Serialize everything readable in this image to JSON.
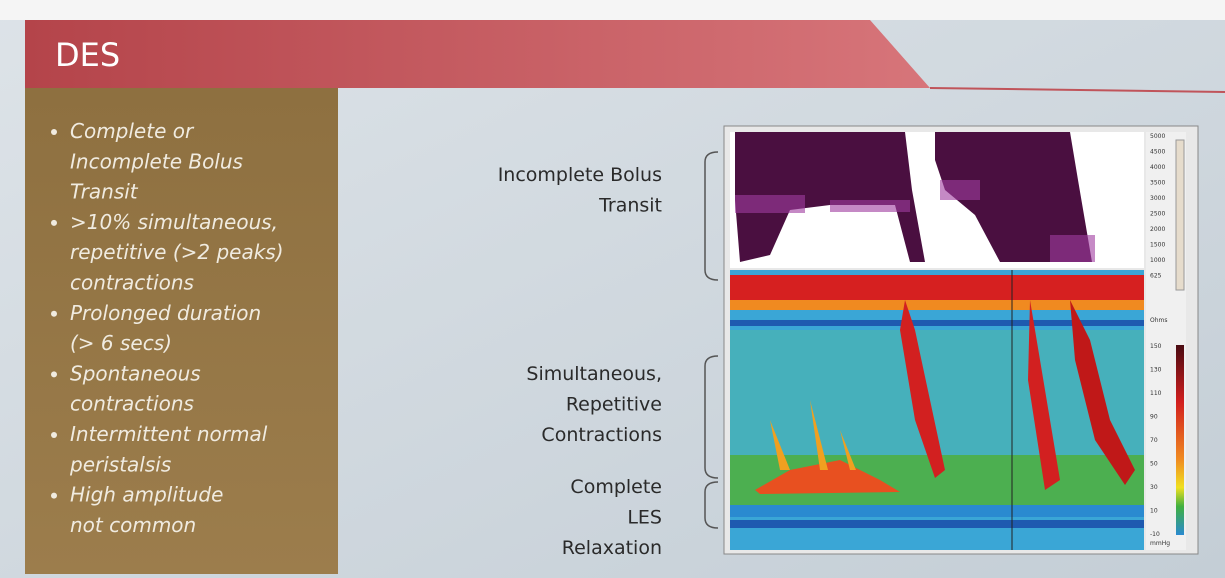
{
  "header": {
    "title": "DES"
  },
  "bullets": [
    [
      "Complete or",
      "Incomplete Bolus",
      "Transit"
    ],
    [
      ">10% simultaneous,",
      "repetitive (>2 peaks)",
      "contractions"
    ],
    [
      "Prolonged duration",
      "(> 6 secs)"
    ],
    [
      "Spontaneous",
      "contractions"
    ],
    [
      "Intermittent normal",
      "peristalsis"
    ],
    [
      "High amplitude",
      "not common"
    ]
  ],
  "annotations": [
    [
      "Incomplete Bolus",
      "Transit"
    ],
    [
      "Simultaneous,",
      "Repetitive",
      "Contractions"
    ],
    [
      "Complete",
      "LES",
      "Relaxation"
    ]
  ],
  "impedance_scale": {
    "labels": [
      "5000",
      "4500",
      "4000",
      "3500",
      "3000",
      "2500",
      "2000",
      "1500",
      "1000",
      "625"
    ],
    "unit": "Ohms"
  },
  "pressure_scale": {
    "labels": [
      "150",
      "130",
      "110",
      "90",
      "70",
      "50",
      "30",
      "10",
      "-10"
    ],
    "unit": "mmHg"
  }
}
